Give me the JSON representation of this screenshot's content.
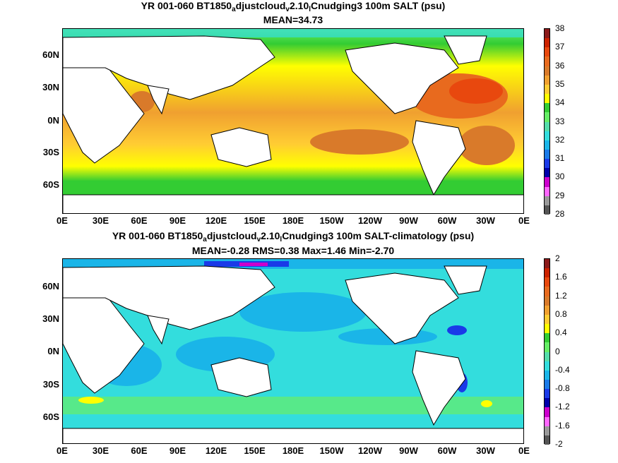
{
  "panels": [
    {
      "title_pre": "YR 001-060 BT1850",
      "title_sub1": "a",
      "title_mid1": "djustcloud",
      "title_sub2": "v",
      "title_mid2": "2.10",
      "title_sub3": "l",
      "title_post": "Cnudging3 100m SALT (psu)",
      "stats": "MEAN=34.73",
      "colorbar_labels": [
        "38",
        "37",
        "36",
        "35",
        "34",
        "33",
        "32",
        "31",
        "30",
        "29",
        "28"
      ],
      "colorbar_colors": [
        "#8b1a1a",
        "#cc2200",
        "#e8480e",
        "#e86a1e",
        "#d97a2a",
        "#f0a030",
        "#ffcc33",
        "#ffff00",
        "#33cc33",
        "#66ee66",
        "#55ddaa",
        "#33dddd",
        "#1ab5e8",
        "#1a7ae8",
        "#1a3ae8",
        "#0000aa",
        "#cc00cc",
        "#ff66ff",
        "#999999",
        "#555555"
      ]
    },
    {
      "title_pre": "YR 001-060 BT1850",
      "title_sub1": "a",
      "title_mid1": "djustcloud",
      "title_sub2": "v",
      "title_mid2": "2.10",
      "title_sub3": "l",
      "title_post": "Cnudging3 100m SALT-climatology (psu)",
      "stats": "MEAN=-0.28   RMS=0.38   Max=1.46   Min=-2.70",
      "colorbar_labels": [
        "2",
        "1.6",
        "1.2",
        "0.8",
        "0.4",
        "0",
        "-0.4",
        "-0.8",
        "-1.2",
        "-1.6",
        "-2"
      ],
      "colorbar_colors": [
        "#8b1a1a",
        "#cc2200",
        "#e8480e",
        "#e86a1e",
        "#d97a2a",
        "#f0a030",
        "#ffcc33",
        "#ffff00",
        "#33cc33",
        "#66ee66",
        "#55ddaa",
        "#33dddd",
        "#1ab5e8",
        "#1a7ae8",
        "#1a3ae8",
        "#0000aa",
        "#cc00cc",
        "#ff66ff",
        "#999999",
        "#555555"
      ]
    }
  ],
  "lat_labels": [
    "60N",
    "30N",
    "0N",
    "30S",
    "60S"
  ],
  "lon_labels": [
    "0E",
    "30E",
    "60E",
    "90E",
    "120E",
    "150E",
    "180E",
    "150W",
    "120W",
    "90W",
    "60W",
    "30W",
    "0E"
  ],
  "colors": {
    "land": "#ffffff",
    "coast": "#000000"
  }
}
